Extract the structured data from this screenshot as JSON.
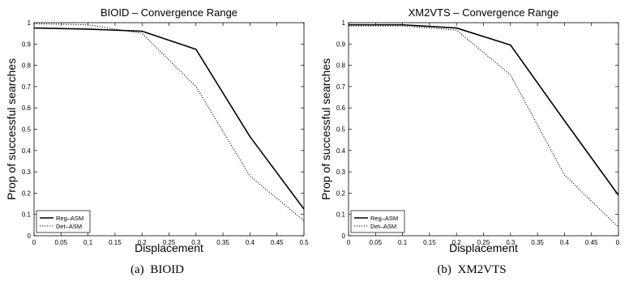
{
  "captions": [
    {
      "label": "(a)",
      "name": "BIOID"
    },
    {
      "label": "(b)",
      "name": "XM2VTS"
    }
  ],
  "chart_data": [
    {
      "type": "line",
      "title": "BIOID – Convergence Range",
      "xlabel": "Displacement",
      "ylabel": "Prop of successful searches",
      "xlim": [
        0,
        0.5
      ],
      "ylim": [
        0,
        1
      ],
      "xticks": [
        "0",
        "0.05",
        "0.1",
        "0.15",
        "0.2",
        "0.25",
        "0.3",
        "0.35",
        "0.4",
        "0.45",
        "0.5"
      ],
      "yticks": [
        "0",
        "0.1",
        "0.2",
        "0.3",
        "0.4",
        "0.5",
        "0.6",
        "0.7",
        "0.8",
        "0.9",
        "1"
      ],
      "legend_position": "bottom-left",
      "grid": false,
      "x": [
        0,
        0.1,
        0.2,
        0.3,
        0.4,
        0.5
      ],
      "series": [
        {
          "name": "Reg–ASM",
          "style": "solid",
          "color": "#000000",
          "values": [
            0.975,
            0.97,
            0.96,
            0.875,
            0.465,
            0.125
          ]
        },
        {
          "name": "Det–ASM",
          "style": "dotted",
          "color": "#000000",
          "values": [
            0.995,
            0.99,
            0.95,
            0.7,
            0.28,
            0.07
          ]
        }
      ]
    },
    {
      "type": "line",
      "title": "XM2VTS – Convergence Range",
      "xlabel": "Displacement",
      "ylabel": "Prop of successful searches",
      "xlim": [
        0,
        0.5
      ],
      "ylim": [
        0,
        1
      ],
      "xticks": [
        "0",
        "0.05",
        "0.1",
        "0.15",
        "0.2",
        "0.25",
        "0.3",
        "0.35",
        "0.4",
        "0.45",
        "0."
      ],
      "yticks": [
        "0",
        "0.1",
        "0.2",
        "0.3",
        "0.4",
        "0.5",
        "0.6",
        "0.7",
        "0.8",
        "0.9",
        "1"
      ],
      "legend_position": "bottom-left",
      "grid": false,
      "x": [
        0,
        0.1,
        0.2,
        0.3,
        0.4,
        0.5
      ],
      "series": [
        {
          "name": "Reg–ASM",
          "style": "solid",
          "color": "#000000",
          "values": [
            0.99,
            0.99,
            0.975,
            0.895,
            0.54,
            0.19
          ]
        },
        {
          "name": "Det–ASM",
          "style": "dotted",
          "color": "#000000",
          "values": [
            0.985,
            0.985,
            0.965,
            0.755,
            0.285,
            0.04
          ]
        }
      ]
    }
  ]
}
